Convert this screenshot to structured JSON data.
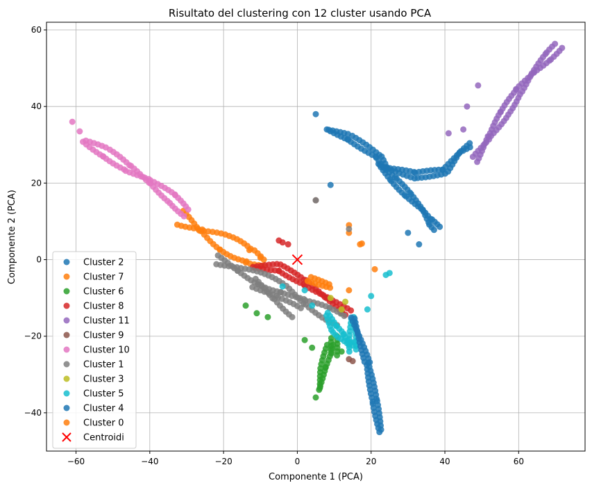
{
  "chart_data": {
    "type": "scatter",
    "title": "Risultato del clustering con 12 cluster usando PCA",
    "xlabel": "Componente 1 (PCA)",
    "ylabel": "Componente 2 (PCA)",
    "xlim": [
      -68,
      78
    ],
    "ylim": [
      -50,
      62
    ],
    "x_ticks": [
      -60,
      -40,
      -20,
      0,
      20,
      40,
      60
    ],
    "y_ticks": [
      -40,
      -20,
      0,
      20,
      40,
      60
    ],
    "x_tick_labels": [
      "−60",
      "−40",
      "−20",
      "0",
      "20",
      "40",
      "60"
    ],
    "y_tick_labels": [
      "−40",
      "−20",
      "0",
      "20",
      "40",
      "60"
    ],
    "grid": true,
    "legend_position": "lower-left",
    "series": [
      {
        "name": "Cluster 2",
        "color": "#1f77b4",
        "segments": [
          [
            [
              8,
              34
            ],
            [
              14,
              32
            ],
            [
              22,
              27
            ],
            [
              24,
              24
            ],
            [
              32,
              22
            ],
            [
              40,
              23
            ],
            [
              44,
              28
            ],
            [
              47,
              30
            ]
          ],
          [
            [
              22,
              25
            ],
            [
              26,
              21
            ],
            [
              30,
              17
            ],
            [
              34,
              13
            ],
            [
              36,
              10
            ],
            [
              38,
              8
            ]
          ]
        ],
        "points": [
          [
            5,
            38
          ],
          [
            9,
            19.5
          ],
          [
            30,
            7
          ],
          [
            33,
            4
          ]
        ],
        "width": 9
      },
      {
        "name": "Cluster 7",
        "color": "#ff7f0e",
        "segments": [
          [
            [
              -32,
              11
            ],
            [
              -26,
              7.5
            ],
            [
              -20,
              4.5
            ],
            [
              -13,
              1
            ],
            [
              -9,
              -1
            ]
          ]
        ],
        "points": [
          [
            -13,
            2.5
          ],
          [
            -10,
            0.5
          ],
          [
            14,
            9
          ],
          [
            14,
            7
          ],
          [
            17,
            4
          ],
          [
            21,
            -2.5
          ],
          [
            14,
            -8
          ]
        ],
        "width": 26
      },
      {
        "name": "Cluster 6",
        "color": "#2ca02c",
        "segments": [
          [
            [
              9,
              -22
            ],
            [
              7,
              -28
            ],
            [
              6,
              -34
            ]
          ],
          [
            [
              10,
              -20
            ],
            [
              10,
              -25
            ]
          ]
        ],
        "points": [
          [
            -14,
            -12
          ],
          [
            -11,
            -14
          ],
          [
            -8,
            -15
          ],
          [
            2,
            -21
          ],
          [
            4,
            -23
          ],
          [
            5,
            -36
          ],
          [
            12,
            -24
          ],
          [
            12,
            -14
          ]
        ],
        "width": 9
      },
      {
        "name": "Cluster 8",
        "color": "#d62728",
        "segments": [
          [
            [
              -12,
              -2
            ],
            [
              -5,
              -2
            ],
            [
              2,
              -6
            ],
            [
              8,
              -10
            ],
            [
              14,
              -14
            ]
          ]
        ],
        "points": [
          [
            -5,
            5
          ],
          [
            -4,
            4.5
          ],
          [
            -2.5,
            4
          ]
        ],
        "width": 10
      },
      {
        "name": "Cluster 11",
        "color": "#9467bd",
        "segments": [
          [
            [
              48,
              26
            ],
            [
              52,
              32
            ],
            [
              56,
              38
            ],
            [
              60,
              44
            ],
            [
              64,
              49
            ],
            [
              68,
              53
            ],
            [
              71,
              56
            ]
          ]
        ],
        "points": [
          [
            41,
            33
          ],
          [
            45,
            34
          ],
          [
            49,
            45.5
          ],
          [
            46,
            40
          ]
        ],
        "width": 12
      },
      {
        "name": "Cluster 9",
        "color": "#8c564b",
        "segments": [],
        "points": [
          [
            5,
            15.5
          ],
          [
            14,
            -26
          ],
          [
            15,
            -26.5
          ]
        ],
        "width": 6
      },
      {
        "name": "Cluster 10",
        "color": "#e377c2",
        "segments": [
          [
            [
              -58,
              31
            ],
            [
              -52,
              28
            ],
            [
              -46,
              24
            ],
            [
              -40,
              20.5
            ],
            [
              -34,
              16
            ],
            [
              -30,
              12
            ]
          ]
        ],
        "points": [
          [
            -61,
            36
          ],
          [
            -59,
            33.5
          ]
        ],
        "width": 14
      },
      {
        "name": "Cluster 1",
        "color": "#7f7f7f",
        "segments": [
          [
            [
              -22,
              0
            ],
            [
              -16,
              -2.5
            ],
            [
              -10,
              -5
            ],
            [
              -4,
              -7.5
            ],
            [
              2,
              -11
            ],
            [
              8,
              -14
            ],
            [
              12,
              -16
            ]
          ],
          [
            [
              -12,
              -6
            ],
            [
              -6,
              -10
            ],
            [
              0,
              -14
            ]
          ]
        ],
        "points": [
          [
            14,
            8
          ],
          [
            5,
            15.5
          ]
        ],
        "width": 18
      },
      {
        "name": "Cluster 3",
        "color": "#bcbd22",
        "segments": [],
        "points": [
          [
            9,
            -10
          ],
          [
            13,
            -11
          ],
          [
            12,
            -13
          ]
        ],
        "width": 6
      },
      {
        "name": "Cluster 5",
        "color": "#17becf",
        "segments": [
          [
            [
              8,
              -14
            ],
            [
              10,
              -18
            ],
            [
              12,
              -20
            ],
            [
              14,
              -22
            ],
            [
              16,
              -22
            ]
          ],
          [
            [
              15,
              -15
            ],
            [
              15,
              -24
            ]
          ]
        ],
        "points": [
          [
            -4,
            -7
          ],
          [
            2,
            -8
          ],
          [
            4,
            -12
          ],
          [
            20,
            -9.5
          ],
          [
            19,
            -13
          ],
          [
            24,
            -4
          ],
          [
            25,
            -3.5
          ]
        ],
        "width": 10
      },
      {
        "name": "Cluster 4",
        "color": "#1f77b4",
        "segments": [
          [
            [
              15,
              -15
            ],
            [
              19,
              -27
            ],
            [
              21,
              -37
            ],
            [
              22.5,
              -45
            ]
          ]
        ],
        "points": [],
        "width": 7
      },
      {
        "name": "Cluster 0",
        "color": "#ff7f0e",
        "segments": [
          [
            [
              3,
              -5
            ],
            [
              9,
              -7
            ]
          ]
        ],
        "points": [
          [
            17.5,
            4.2
          ]
        ],
        "width": 7
      },
      {
        "name": "Centroidi",
        "color": "#ff0000",
        "marker": "x",
        "points": [
          [
            0,
            0
          ]
        ]
      }
    ]
  }
}
